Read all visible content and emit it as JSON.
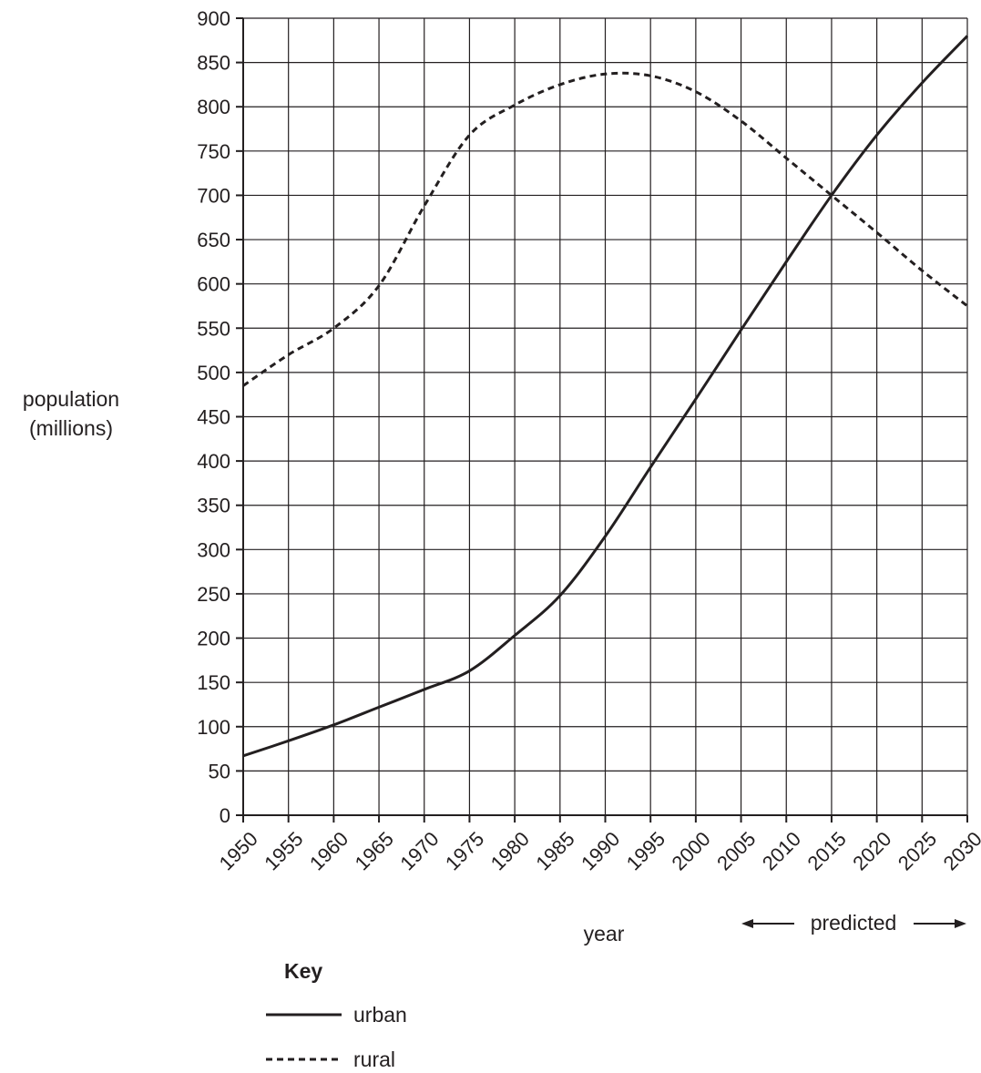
{
  "chart_data": {
    "type": "line",
    "title": "",
    "xlabel": "year",
    "ylabel_lines": [
      "population",
      "(millions)"
    ],
    "x": [
      1950,
      1955,
      1960,
      1965,
      1970,
      1975,
      1980,
      1985,
      1990,
      1995,
      2000,
      2005,
      2010,
      2015,
      2020,
      2025,
      2030
    ],
    "xlim": [
      1950,
      2030
    ],
    "ylim": [
      0,
      900
    ],
    "y_ticks": [
      0,
      50,
      100,
      150,
      200,
      250,
      300,
      350,
      400,
      450,
      500,
      550,
      600,
      650,
      700,
      750,
      800,
      850,
      900
    ],
    "grid": true,
    "predicted_label": "predicted",
    "predicted_range": [
      2005,
      2030
    ],
    "series": [
      {
        "name": "urban",
        "style": "solid",
        "values": [
          67,
          84,
          102,
          122,
          142,
          163,
          203,
          248,
          315,
          393,
          470,
          548,
          625,
          700,
          768,
          827,
          880
        ]
      },
      {
        "name": "rural",
        "style": "dashed",
        "values": [
          485,
          520,
          550,
          598,
          688,
          768,
          802,
          825,
          837,
          835,
          817,
          784,
          742,
          700,
          658,
          615,
          575
        ]
      }
    ],
    "key": {
      "title": "Key",
      "items": [
        "urban",
        "rural"
      ]
    },
    "colors": {
      "line": "#231f20",
      "grid": "#231f20"
    }
  }
}
